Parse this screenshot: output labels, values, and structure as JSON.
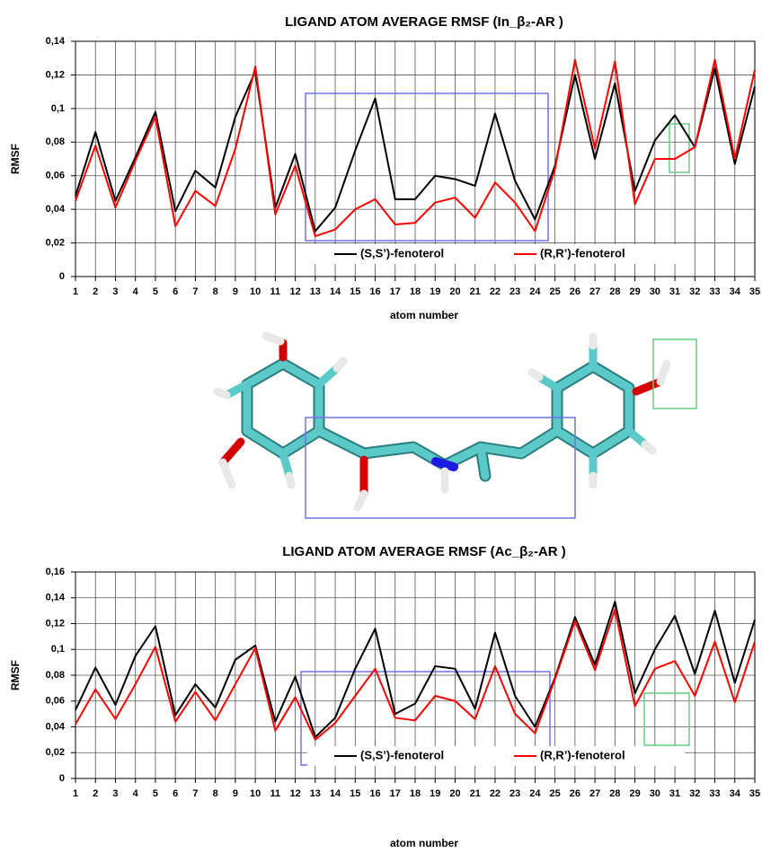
{
  "chart_data": [
    {
      "type": "line",
      "title": "LIGAND ATOM AVERAGE RMSF (In_β₂-AR )",
      "x_label": "atom number",
      "y_label": "RMSF",
      "categories": [
        "1",
        "2",
        "3",
        "4",
        "5",
        "6",
        "7",
        "8",
        "9",
        "10",
        "11",
        "12",
        "13",
        "14",
        "15",
        "16",
        "17",
        "18",
        "19",
        "20",
        "21",
        "22",
        "23",
        "24",
        "25",
        "26",
        "27",
        "28",
        "29",
        "30",
        "31",
        "32",
        "33",
        "34",
        "35"
      ],
      "series": [
        {
          "name": "(S,S’)-fenoterol",
          "color": "#000000",
          "values": [
            0.048,
            0.086,
            0.045,
            0.071,
            0.098,
            0.039,
            0.063,
            0.053,
            0.095,
            0.122,
            0.041,
            0.073,
            0.027,
            0.041,
            0.075,
            0.106,
            0.046,
            0.046,
            0.06,
            0.058,
            0.054,
            0.097,
            0.057,
            0.034,
            0.066,
            0.12,
            0.07,
            0.115,
            0.051,
            0.081,
            0.096,
            0.077,
            0.124,
            0.067,
            0.113
          ]
        },
        {
          "name": "(R,R’)-fenoterol",
          "color": "#ff0000",
          "values": [
            0.045,
            0.078,
            0.041,
            0.069,
            0.095,
            0.03,
            0.051,
            0.042,
            0.076,
            0.125,
            0.037,
            0.066,
            0.024,
            0.028,
            0.04,
            0.046,
            0.031,
            0.032,
            0.044,
            0.047,
            0.035,
            0.056,
            0.044,
            0.027,
            0.064,
            0.129,
            0.076,
            0.128,
            0.043,
            0.07,
            0.07,
            0.077,
            0.129,
            0.07,
            0.123
          ]
        }
      ],
      "ylim": [
        0,
        0.14
      ],
      "yticks": [
        0,
        {
          "value": 0.02,
          "label": "0,02"
        },
        {
          "value": 0.04,
          "label": "0,04"
        },
        {
          "value": 0.06,
          "label": "0,06"
        },
        {
          "value": 0.08,
          "label": "0,08"
        },
        {
          "value": 0.1,
          "label": "0,1"
        },
        {
          "value": 0.12,
          "label": "0,12"
        },
        {
          "value": 0.14,
          "label": "0,14"
        }
      ],
      "grid": true,
      "legend": "lower center"
    },
    {
      "type": "line",
      "title": "LIGAND ATOM AVERAGE RMSF (Ac_β₂-AR )",
      "x_label": "atom number",
      "y_label": "RMSF",
      "categories": [
        "1",
        "2",
        "3",
        "4",
        "5",
        "6",
        "7",
        "8",
        "9",
        "10",
        "11",
        "12",
        "13",
        "14",
        "15",
        "16",
        "17",
        "18",
        "19",
        "20",
        "21",
        "22",
        "23",
        "24",
        "25",
        "26",
        "27",
        "28",
        "29",
        "30",
        "31",
        "32",
        "33",
        "34",
        "35"
      ],
      "series": [
        {
          "name": "(S,S’)-fenoterol",
          "color": "#000000",
          "values": [
            0.053,
            0.086,
            0.057,
            0.095,
            0.118,
            0.049,
            0.073,
            0.055,
            0.092,
            0.103,
            0.044,
            0.079,
            0.032,
            0.047,
            0.085,
            0.116,
            0.05,
            0.058,
            0.087,
            0.085,
            0.054,
            0.113,
            0.064,
            0.04,
            0.078,
            0.125,
            0.088,
            0.137,
            0.066,
            0.1,
            0.126,
            0.081,
            0.13,
            0.074,
            0.123
          ]
        },
        {
          "name": "(R,R’)-fenoterol",
          "color": "#ff0000",
          "values": [
            0.042,
            0.069,
            0.046,
            0.073,
            0.102,
            0.044,
            0.067,
            0.045,
            0.073,
            0.101,
            0.037,
            0.063,
            0.03,
            0.043,
            0.064,
            0.085,
            0.047,
            0.045,
            0.064,
            0.06,
            0.046,
            0.087,
            0.05,
            0.035,
            0.077,
            0.122,
            0.084,
            0.131,
            0.056,
            0.085,
            0.091,
            0.064,
            0.106,
            0.059,
            0.106
          ]
        }
      ],
      "ylim": [
        0,
        0.16
      ],
      "yticks": [
        0,
        {
          "value": 0.02,
          "label": "0,02"
        },
        {
          "value": 0.04,
          "label": "0,04"
        },
        {
          "value": 0.06,
          "label": "0,06"
        },
        {
          "value": 0.08,
          "label": "0,08"
        },
        {
          "value": 0.1,
          "label": "0,1"
        },
        {
          "value": 0.12,
          "label": "0,12"
        },
        {
          "value": 0.14,
          "label": "0,14"
        },
        {
          "value": 0.16,
          "label": "0,16"
        }
      ],
      "grid": true,
      "legend": "lower center"
    }
  ]
}
